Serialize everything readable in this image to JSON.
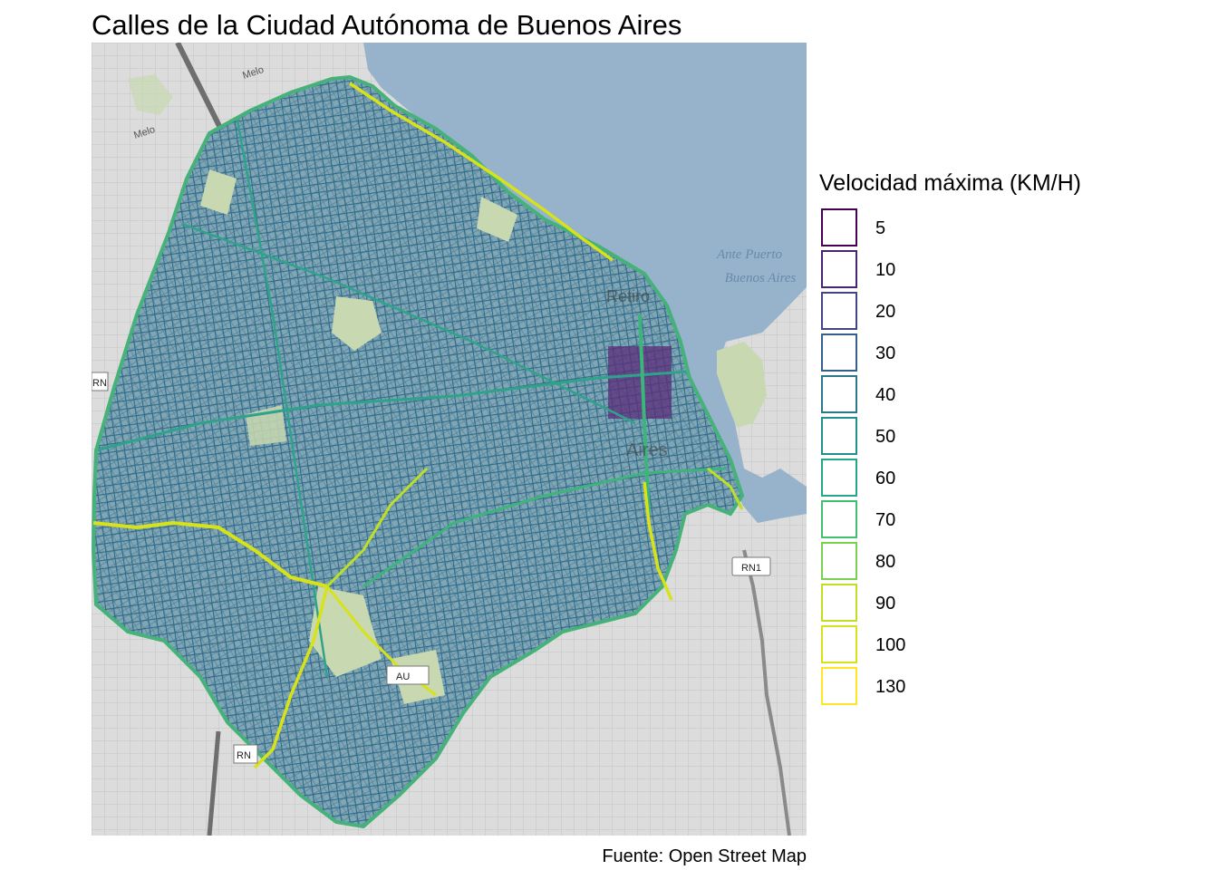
{
  "title": "Calles de la Ciudad Autónoma de Buenos Aires",
  "caption": "Fuente: Open Street Map",
  "legend": {
    "title": "Velocidad máxima (KM/H)",
    "items": [
      {
        "label": "5",
        "color": "#440154"
      },
      {
        "label": "10",
        "color": "#482475"
      },
      {
        "label": "20",
        "color": "#414487"
      },
      {
        "label": "30",
        "color": "#355f8d"
      },
      {
        "label": "40",
        "color": "#2a788e"
      },
      {
        "label": "50",
        "color": "#21908d"
      },
      {
        "label": "60",
        "color": "#22a884"
      },
      {
        "label": "70",
        "color": "#42be71"
      },
      {
        "label": "80",
        "color": "#7ad151"
      },
      {
        "label": "90",
        "color": "#bddf26"
      },
      {
        "label": "100",
        "color": "#d8e219"
      },
      {
        "label": "130",
        "color": "#fde725"
      }
    ]
  },
  "map": {
    "labels": {
      "ante_puerto_1": "Ante Puerto",
      "ante_puerto_2": "Buenos Aires",
      "retiro": "Retiro",
      "aires": "Aires",
      "melo_1": "Melo",
      "melo_2": "Melo"
    },
    "shields": {
      "rn1": "RN1",
      "rn_left": "RN",
      "rn_bottom": "RN",
      "au": "AU"
    },
    "colors": {
      "water": "#97b3cc",
      "land": "#dcdcdc",
      "park": "#c8d8b0",
      "street_base": "#2b7a8c",
      "street_mesh": "#3b5f8f"
    }
  }
}
